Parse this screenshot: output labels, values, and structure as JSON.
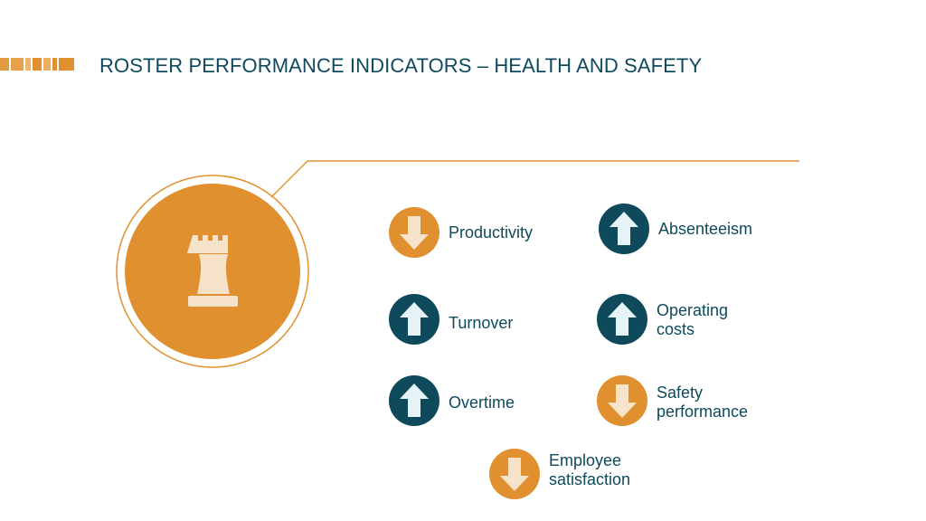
{
  "title": "ROSTER PERFORMANCE INDICATORS – HEALTH AND SAFETY",
  "colors": {
    "teal": "#0e4a5c",
    "orange": "#e0902e",
    "light": "#f7e3c9"
  },
  "hero_icon": "chess-rook-icon",
  "indicators": [
    {
      "label_lines": [
        "Productivity"
      ],
      "direction": "down",
      "icon": "arrow-down-icon"
    },
    {
      "label_lines": [
        "Absenteeism"
      ],
      "direction": "up",
      "icon": "arrow-up-icon"
    },
    {
      "label_lines": [
        "Turnover"
      ],
      "direction": "up",
      "icon": "arrow-up-icon"
    },
    {
      "label_lines": [
        "Operating",
        "costs"
      ],
      "direction": "up",
      "icon": "arrow-up-icon"
    },
    {
      "label_lines": [
        "Overtime"
      ],
      "direction": "up",
      "icon": "arrow-up-icon"
    },
    {
      "label_lines": [
        "Safety",
        "performance"
      ],
      "direction": "down",
      "icon": "arrow-down-icon"
    },
    {
      "label_lines": [
        "Employee",
        "satisfaction"
      ],
      "direction": "down",
      "icon": "arrow-down-icon"
    }
  ]
}
